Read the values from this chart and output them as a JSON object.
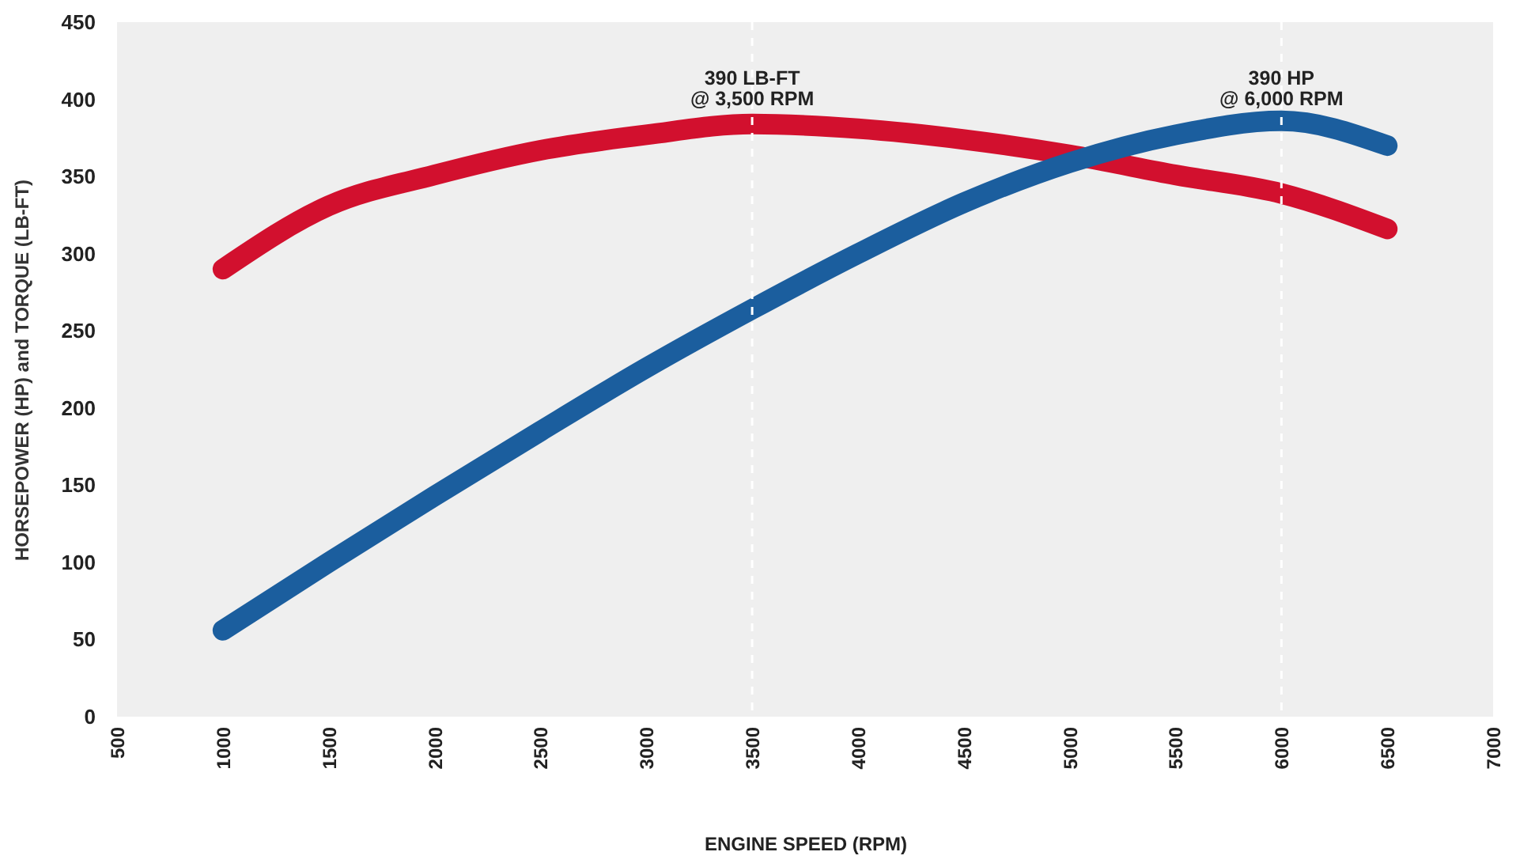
{
  "chart_data": {
    "type": "line",
    "ylabel": "HORSEPOWER (HP) and TORQUE (LB-FT)",
    "xlabel": "ENGINE SPEED (RPM)",
    "x": [
      1000,
      1500,
      2000,
      2500,
      3000,
      3500,
      4000,
      4500,
      5000,
      5500,
      6000,
      6500
    ],
    "series": [
      {
        "color": "#d2102e",
        "values": [
          290,
          331,
          351,
          367,
          377,
          384,
          381,
          374,
          364,
          351,
          339,
          316
        ]
      },
      {
        "color": "#1b5e9e",
        "values": [
          56,
          100,
          143,
          185,
          226,
          264,
          300,
          333,
          359,
          377,
          386,
          370
        ]
      }
    ],
    "xlim": [
      500,
      7000
    ],
    "xticks": [
      500,
      1000,
      1500,
      2000,
      2500,
      3000,
      3500,
      4000,
      4500,
      5000,
      5500,
      6000,
      6500,
      7000
    ],
    "ylim": [
      0,
      450
    ],
    "yticks": [
      0,
      50,
      100,
      150,
      200,
      250,
      300,
      350,
      400,
      450
    ],
    "grid": false,
    "line_style": "solid",
    "ref_lines": [
      {
        "axis": "x",
        "value": 3500,
        "color": "#ffffff",
        "line_style": "dashed"
      },
      {
        "axis": "x",
        "value": 6000,
        "color": "#ffffff",
        "line_style": "dashed"
      }
    ],
    "annotations": [
      {
        "text": "390 LB-FT\n@ 3,500 RPM",
        "x": 3500,
        "y": 390
      },
      {
        "text": "390 HP\n@ 6,000 RPM",
        "x": 6000,
        "y": 390
      }
    ]
  }
}
